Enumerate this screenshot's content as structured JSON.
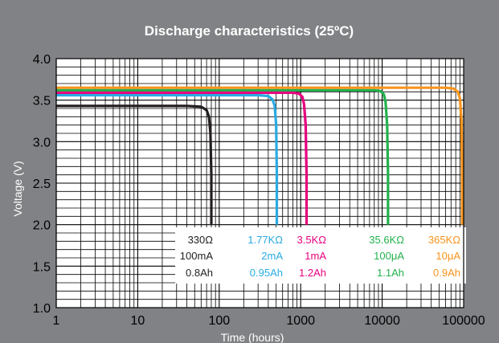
{
  "chart_data": {
    "type": "line",
    "title": "Discharge characteristics (25ºC)",
    "xlabel": "Time (hours)",
    "ylabel": "Voltage (V)",
    "x_scale": "log",
    "xlim": [
      1,
      100000
    ],
    "ylim": [
      1.0,
      4.0
    ],
    "x_ticks": [
      "1",
      "10",
      "100",
      "1000",
      "10000",
      "100000"
    ],
    "y_ticks": [
      "1.0",
      "1.5",
      "2.0",
      "2.5",
      "3.0",
      "3.5",
      "4.0"
    ],
    "grid": true,
    "series": [
      {
        "name": "330Ω",
        "current": "100mA",
        "capacity": "0.8Ah",
        "color": "#231f20",
        "x": [
          1,
          40,
          60,
          70,
          75,
          78,
          80,
          80
        ],
        "y": [
          3.43,
          3.43,
          3.42,
          3.38,
          3.3,
          3.1,
          2.6,
          2.0
        ]
      },
      {
        "name": "1.77KΩ",
        "current": "2mA",
        "capacity": "0.95Ah",
        "color": "#29abe2",
        "x": [
          1,
          300,
          400,
          450,
          480,
          500,
          510,
          510
        ],
        "y": [
          3.56,
          3.56,
          3.55,
          3.51,
          3.43,
          3.2,
          2.6,
          2.0
        ]
      },
      {
        "name": "3.5KΩ",
        "current": "1mA",
        "capacity": "1.2Ah",
        "color": "#e6007e",
        "x": [
          1,
          800,
          950,
          1050,
          1100,
          1150,
          1180,
          1180
        ],
        "y": [
          3.59,
          3.59,
          3.58,
          3.54,
          3.45,
          3.2,
          2.6,
          2.0
        ]
      },
      {
        "name": "35.6KΩ",
        "current": "100μA",
        "capacity": "1.1Ah",
        "color": "#22b14c",
        "x": [
          1,
          8000,
          9500,
          10500,
          11000,
          11500,
          11800,
          11800
        ],
        "y": [
          3.62,
          3.62,
          3.61,
          3.57,
          3.48,
          3.2,
          2.6,
          2.0
        ]
      },
      {
        "name": "365KΩ",
        "current": "10μA",
        "capacity": "0.9Ah",
        "color": "#f7941d",
        "x": [
          1,
          60000,
          75000,
          85000,
          90000,
          94000,
          96000,
          96000
        ],
        "y": [
          3.65,
          3.65,
          3.64,
          3.6,
          3.52,
          3.25,
          2.6,
          2.0
        ]
      }
    ]
  }
}
